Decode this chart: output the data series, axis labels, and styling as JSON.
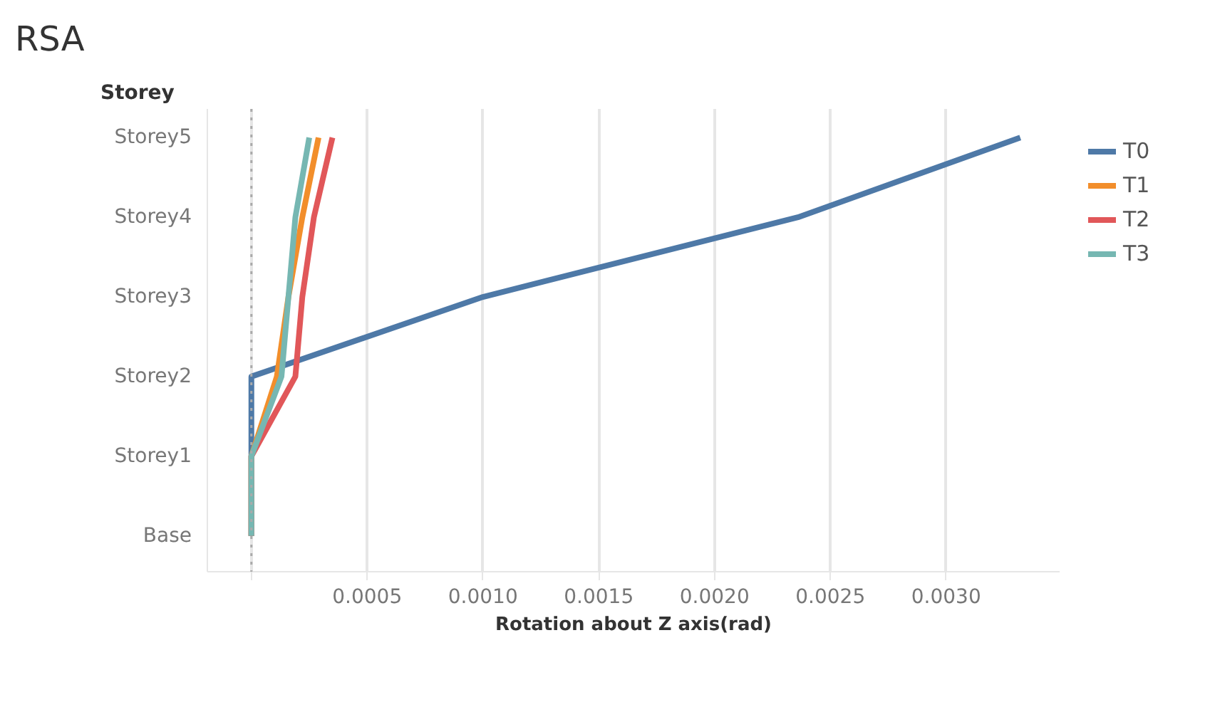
{
  "chart_data": {
    "type": "line",
    "title": "RSA",
    "xlabel": "Rotation about Z axis(rad)",
    "ylabel": "Storey",
    "orientation": "horizontal",
    "categories": [
      "Storey5",
      "Storey4",
      "Storey3",
      "Storey2",
      "Storey1",
      "Base"
    ],
    "series": [
      {
        "name": "T0",
        "color": "#4e79a7",
        "values": [
          0.00332,
          0.00236,
          0.001,
          0,
          0,
          0
        ]
      },
      {
        "name": "T1",
        "color": "#f28e2b",
        "values": [
          0.00029,
          0.00022,
          0.00016,
          0.00011,
          0,
          0
        ]
      },
      {
        "name": "T2",
        "color": "#e15759",
        "values": [
          0.00035,
          0.00027,
          0.00022,
          0.00019,
          0,
          0
        ]
      },
      {
        "name": "T3",
        "color": "#76b7b2",
        "values": [
          0.00025,
          0.00019,
          0.00016,
          0.00013,
          0,
          0
        ]
      }
    ],
    "xlim": [
      -0.00019,
      0.00349
    ],
    "xticks": [
      {
        "value": 0,
        "label": null
      },
      {
        "value": 0.0005,
        "label": "0.0005"
      },
      {
        "value": 0.001,
        "label": "0.0010"
      },
      {
        "value": 0.0015,
        "label": "0.0015"
      },
      {
        "value": 0.002,
        "label": "0.0020"
      },
      {
        "value": 0.0025,
        "label": "0.0025"
      },
      {
        "value": 0.003,
        "label": "0.0030"
      }
    ],
    "ref_lines": [
      {
        "axis": "x",
        "value": 0,
        "label": null,
        "color": "#aaaaaa",
        "line_style": "dotted"
      }
    ],
    "grid": "x",
    "legend": "top right",
    "marker": "none",
    "line_style": "solid"
  }
}
